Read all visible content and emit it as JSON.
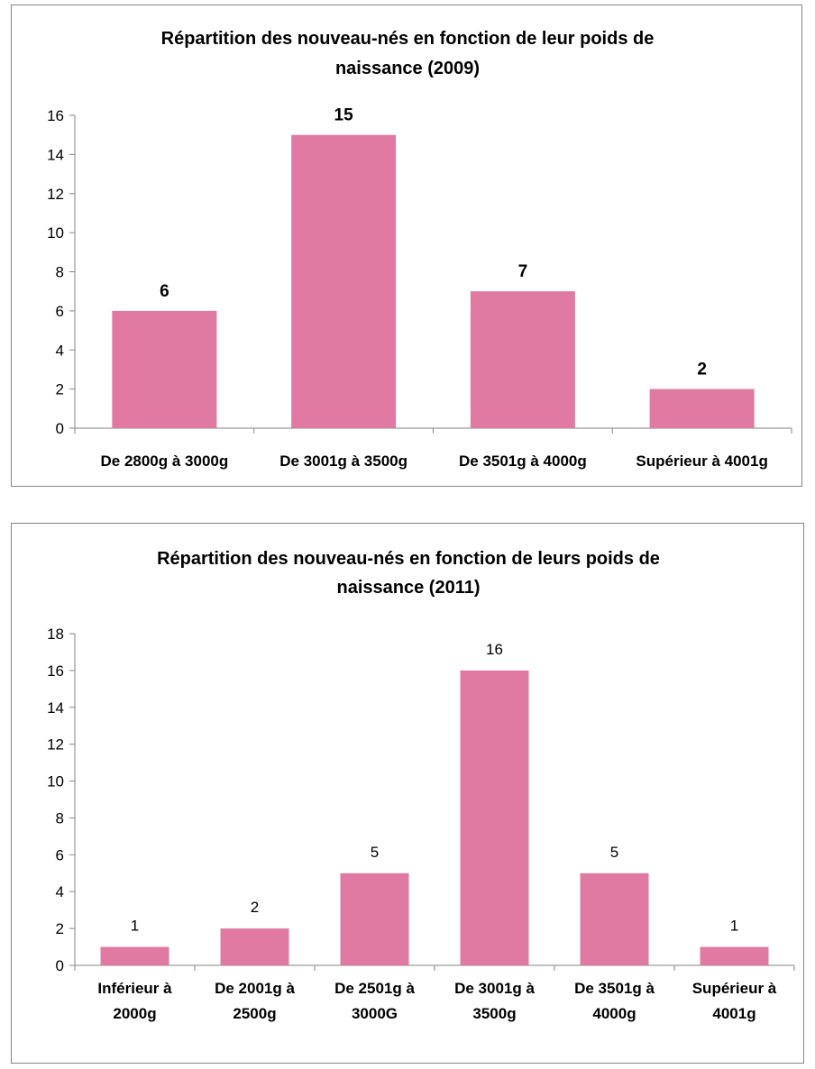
{
  "chart_data": [
    {
      "type": "bar",
      "title": "Répartition des nouveau-nés en fonction de leur poids de naissance (2009)",
      "title_lines": [
        "Répartition des nouveau-nés en fonction de leur poids de",
        "naissance (2009)"
      ],
      "categories": [
        "De 2800g à 3000g",
        "De 3001g à 3500g",
        "De 3501g à 4000g",
        "Supérieur à 4001g"
      ],
      "category_lines": [
        [
          "De 2800g à 3000g"
        ],
        [
          "De 3001g à 3500g"
        ],
        [
          "De 3501g à 4000g"
        ],
        [
          "Supérieur à 4001g"
        ]
      ],
      "values": [
        6,
        15,
        7,
        2
      ],
      "data_labels": [
        "6",
        "15",
        "7",
        "2"
      ],
      "data_labels_bold": true,
      "ylim": [
        0,
        16
      ],
      "yticks": [
        "0",
        "2",
        "4",
        "6",
        "8",
        "10",
        "12",
        "14",
        "16"
      ],
      "xlabel": "",
      "ylabel": "",
      "bar_color": "#E07AA3",
      "grid": false,
      "legend": "none"
    },
    {
      "type": "bar",
      "title": "Répartition des nouveau-nés en fonction de leurs poids de naissance (2011)",
      "title_lines": [
        "Répartition des nouveau-nés en fonction de leurs poids de",
        "naissance (2011)"
      ],
      "categories": [
        "Inférieur à 2000g",
        "De 2001g à 2500g",
        "De 2501g à 3000G",
        "De 3001g à 3500g",
        "De 3501g à 4000g",
        "Supérieur à 4001g"
      ],
      "category_lines": [
        [
          "Inférieur à",
          "2000g"
        ],
        [
          "De 2001g à",
          "2500g"
        ],
        [
          "De 2501g à",
          "3000G"
        ],
        [
          "De 3001g à",
          "3500g"
        ],
        [
          "De 3501g à",
          "4000g"
        ],
        [
          "Supérieur à",
          "4001g"
        ]
      ],
      "values": [
        1,
        2,
        5,
        16,
        5,
        1
      ],
      "data_labels": [
        "1",
        "2",
        "5",
        "16",
        "5",
        "1"
      ],
      "data_labels_bold": false,
      "ylim": [
        0,
        18
      ],
      "yticks": [
        "0",
        "2",
        "4",
        "6",
        "8",
        "10",
        "12",
        "14",
        "16",
        "18"
      ],
      "xlabel": "",
      "ylabel": "",
      "bar_color": "#E07AA3",
      "grid": false,
      "legend": "none"
    }
  ]
}
